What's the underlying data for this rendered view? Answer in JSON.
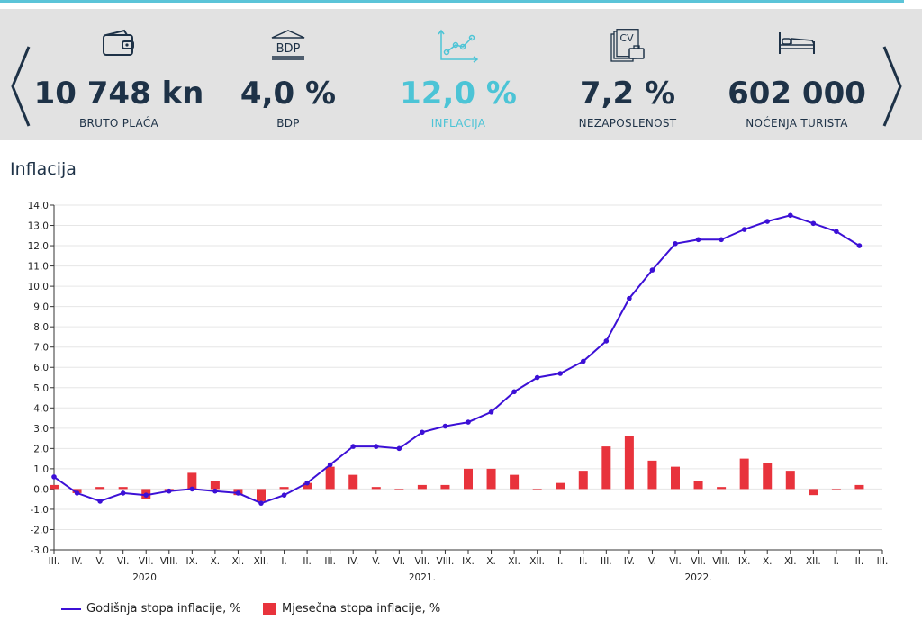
{
  "kpis": [
    {
      "value": "10 748 kn",
      "label": "BRUTO PLAĆA",
      "icon": "wallet-icon"
    },
    {
      "value": "4,0 %",
      "label": "BDP",
      "icon": "bdp-bank-icon"
    },
    {
      "value": "12,0 %",
      "label": "INFLACIJA",
      "icon": "trend-chart-icon"
    },
    {
      "value": "7,2 %",
      "label": "NEZAPOSLENOST",
      "icon": "cv-briefcase-icon"
    },
    {
      "value": "602 000",
      "label": "NOĆENJA TURISTA",
      "icon": "bed-icon"
    }
  ],
  "bdp_icon_text": "BDP",
  "cv_icon_text": "CV",
  "colors": {
    "accent": "#4cc4d6",
    "dark": "#1e3247",
    "line": "#3c10d6",
    "bar": "#e8333c",
    "band": "#e2e2e2"
  },
  "chart_title": "Inflacija",
  "chart_data": {
    "type": "bar+line",
    "ylim": [
      -3.0,
      14.0
    ],
    "yticks": [
      "-3.0",
      "-2.0",
      "-1.0",
      "0.0",
      "1.0",
      "2.0",
      "3.0",
      "4.0",
      "5.0",
      "6.0",
      "7.0",
      "8.0",
      "9.0",
      "10.0",
      "11.0",
      "12.0",
      "13.0",
      "14.0"
    ],
    "categories": [
      "III.",
      "IV.",
      "V.",
      "VI.",
      "VII.",
      "VIII.",
      "IX.",
      "X.",
      "XI.",
      "XII.",
      "I.",
      "II.",
      "III.",
      "IV.",
      "V.",
      "VI.",
      "VII.",
      "VIII.",
      "IX.",
      "X.",
      "XI.",
      "XII.",
      "I.",
      "II.",
      "III.",
      "IV.",
      "V.",
      "VI.",
      "VII.",
      "VIII.",
      "IX.",
      "X.",
      "XI.",
      "XII.",
      "I.",
      "II.",
      "III."
    ],
    "years": [
      {
        "label": "2020.",
        "index": 4
      },
      {
        "label": "2021.",
        "index": 16
      },
      {
        "label": "2022.",
        "index": 28
      }
    ],
    "series": [
      {
        "name": "Godišnja stopa inflacije, %",
        "kind": "line",
        "values": [
          0.6,
          -0.2,
          -0.6,
          -0.2,
          -0.3,
          -0.1,
          0.0,
          -0.1,
          -0.2,
          -0.7,
          -0.3,
          0.3,
          1.2,
          2.1,
          2.1,
          2.0,
          2.8,
          3.1,
          3.3,
          3.8,
          4.8,
          5.5,
          5.7,
          6.3,
          7.3,
          9.4,
          10.8,
          12.1,
          12.3,
          12.3,
          12.8,
          13.2,
          13.5,
          13.1,
          12.7,
          12.0,
          null
        ]
      },
      {
        "name": "Mjesečna stopa inflacije, %",
        "kind": "bar",
        "values": [
          0.2,
          -0.2,
          0.1,
          0.1,
          -0.5,
          -0.1,
          0.8,
          0.4,
          -0.3,
          -0.6,
          0.1,
          0.3,
          1.1,
          0.7,
          0.1,
          -0.05,
          0.2,
          0.2,
          1.0,
          1.0,
          0.7,
          -0.05,
          0.3,
          0.9,
          2.1,
          2.6,
          1.4,
          1.1,
          0.4,
          0.1,
          1.5,
          1.3,
          0.9,
          -0.3,
          -0.05,
          0.2,
          null
        ]
      }
    ]
  }
}
